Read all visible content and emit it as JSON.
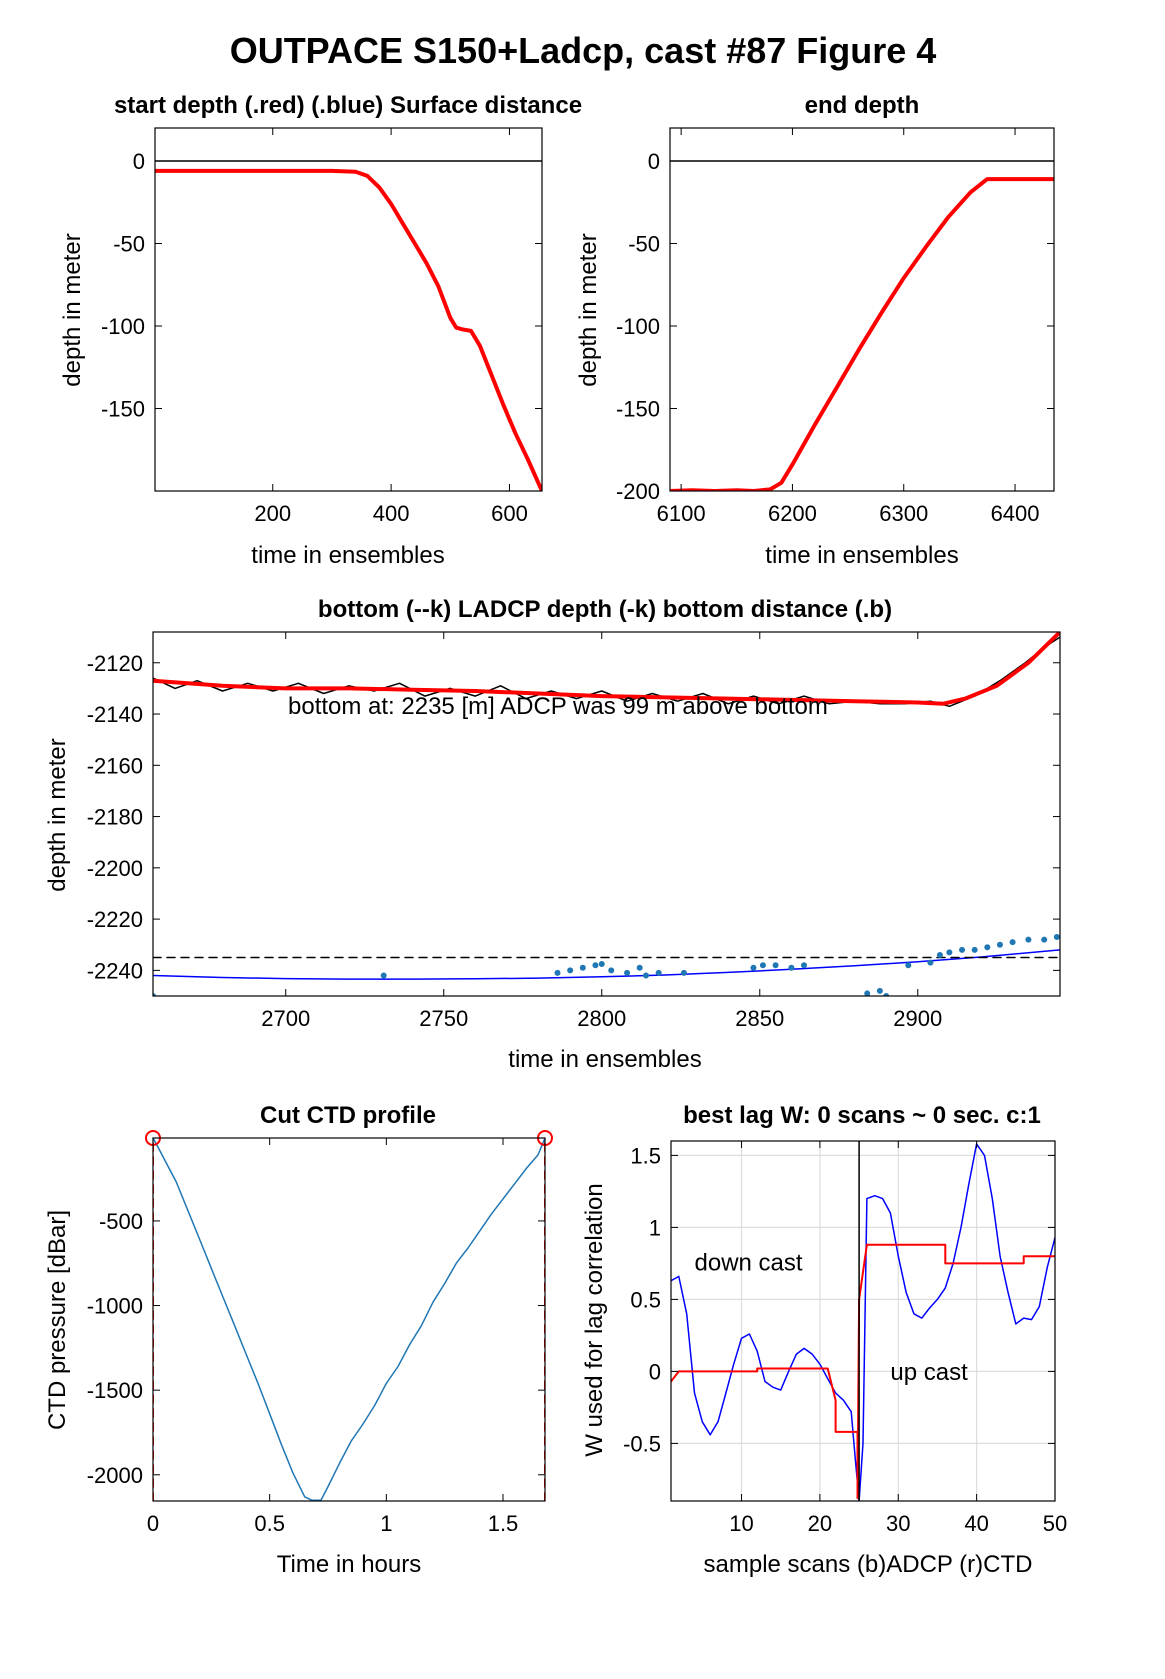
{
  "figure_title": "OUTPACE S150+Ladcp, cast #87    Figure 4",
  "chart_data": [
    {
      "id": "start",
      "type": "line",
      "title": "start depth (.red) (.blue) Surface distance",
      "xlabel": "time in ensembles",
      "ylabel": "depth in meter",
      "xlim": [
        1,
        655
      ],
      "ylim": [
        -200,
        20
      ],
      "xticks": [
        200,
        400,
        600
      ],
      "yticks": [
        0,
        -50,
        -100,
        -150
      ],
      "grid": false,
      "series": [
        {
          "color": "#ff0000",
          "style": "solid",
          "width": 4,
          "x": [
            1,
            100,
            200,
            300,
            340,
            360,
            380,
            400,
            420,
            440,
            460,
            480,
            500,
            510,
            520,
            535,
            550,
            570,
            590,
            610,
            630,
            655
          ],
          "y": [
            -6,
            -6,
            -6,
            -6,
            -6.5,
            -9,
            -16,
            -26,
            -38,
            -50,
            -62,
            -76,
            -95,
            -101,
            -102,
            -103,
            -112,
            -130,
            -148,
            -165,
            -180,
            -200
          ]
        },
        {
          "color": "#000000",
          "style": "solid",
          "width": 1.5,
          "x": [
            1,
            655
          ],
          "y": [
            0,
            0
          ]
        }
      ]
    },
    {
      "id": "end",
      "type": "line",
      "title": "end depth",
      "xlabel": "time in ensembles",
      "ylabel": "depth in meter",
      "xlim": [
        6090,
        6435
      ],
      "ylim": [
        -200,
        20
      ],
      "xticks": [
        6100,
        6200,
        6300,
        6400
      ],
      "yticks": [
        0,
        -50,
        -100,
        -150,
        -200
      ],
      "grid": false,
      "series": [
        {
          "color": "#ff0000",
          "style": "solid",
          "width": 4,
          "x": [
            6090,
            6110,
            6130,
            6150,
            6165,
            6180,
            6190,
            6200,
            6220,
            6240,
            6260,
            6280,
            6300,
            6320,
            6340,
            6360,
            6375,
            6400,
            6435
          ],
          "y": [
            -200,
            -199.5,
            -200,
            -199.5,
            -200,
            -199,
            -195,
            -184,
            -160,
            -137,
            -114,
            -92,
            -71,
            -52,
            -34,
            -19,
            -11,
            -11,
            -11
          ]
        },
        {
          "color": "#000000",
          "style": "solid",
          "width": 1.5,
          "x": [
            6090,
            6435
          ],
          "y": [
            0,
            0
          ]
        }
      ]
    },
    {
      "id": "bottom",
      "type": "line",
      "title": "bottom (--k) LADCP depth (-k) bottom distance (.b)",
      "xlabel": "time in ensembles",
      "ylabel": "depth in meter",
      "xlim": [
        2658,
        2945
      ],
      "ylim": [
        -2250,
        -2108
      ],
      "xticks": [
        2700,
        2750,
        2800,
        2850,
        2900
      ],
      "yticks": [
        -2120,
        -2140,
        -2160,
        -2180,
        -2200,
        -2220,
        -2240
      ],
      "grid": false,
      "annotation": "bottom at: 2235 [m]    ADCP was 99 m above bottom",
      "series": [
        {
          "color": "#000000",
          "style": "solid",
          "width": 1.5,
          "x": [
            2658,
            2665,
            2672,
            2680,
            2688,
            2696,
            2704,
            2712,
            2720,
            2728,
            2736,
            2744,
            2752,
            2760,
            2768,
            2776,
            2784,
            2792,
            2800,
            2808,
            2816,
            2824,
            2832,
            2840,
            2848,
            2856,
            2864,
            2872,
            2880,
            2888,
            2896,
            2904,
            2910,
            2918,
            2926,
            2934,
            2940,
            2945
          ],
          "y": [
            -2126,
            -2130,
            -2127,
            -2131,
            -2128,
            -2131,
            -2128,
            -2132,
            -2129,
            -2131,
            -2128,
            -2133,
            -2130,
            -2133,
            -2129,
            -2134,
            -2131,
            -2134,
            -2131,
            -2135,
            -2132,
            -2135,
            -2132,
            -2136,
            -2133,
            -2136,
            -2133,
            -2136,
            -2135,
            -2136,
            -2136,
            -2135,
            -2137,
            -2133,
            -2127,
            -2120,
            -2114,
            -2110
          ]
        },
        {
          "color": "#ff0000",
          "style": "solid",
          "width": 4,
          "x": [
            2658,
            2680,
            2700,
            2720,
            2740,
            2760,
            2780,
            2800,
            2820,
            2840,
            2860,
            2880,
            2900,
            2908,
            2915,
            2925,
            2935,
            2945
          ],
          "y": [
            -2127,
            -2129,
            -2130,
            -2130,
            -2130.5,
            -2131,
            -2132,
            -2133,
            -2133.5,
            -2134,
            -2134.5,
            -2135,
            -2135.5,
            -2136,
            -2134,
            -2129,
            -2120,
            -2108
          ]
        },
        {
          "color": "#0000ff",
          "style": "solid",
          "width": 1.5,
          "x": [
            2658,
            2680,
            2700,
            2720,
            2740,
            2760,
            2780,
            2800,
            2820,
            2840,
            2860,
            2880,
            2900,
            2920,
            2945
          ],
          "y": [
            -2242,
            -2242.8,
            -2243.2,
            -2243.4,
            -2243.4,
            -2243.3,
            -2243,
            -2242.5,
            -2241.8,
            -2240.8,
            -2239.6,
            -2238.2,
            -2236.6,
            -2234.8,
            -2232
          ]
        },
        {
          "color": "#000000",
          "style": "dashed",
          "width": 1.5,
          "x": [
            2658,
            2945
          ],
          "y": [
            -2235,
            -2235
          ]
        },
        {
          "color": "#1f77b4",
          "style": "dots",
          "width": 5,
          "x": [
            2658,
            2731,
            2786,
            2790,
            2794,
            2798,
            2800,
            2803,
            2808,
            2812,
            2814,
            2818,
            2826,
            2848,
            2851,
            2855,
            2860,
            2864,
            2884,
            2888,
            2890,
            2897,
            2904,
            2907,
            2910,
            2914,
            2918,
            2922,
            2926,
            2930,
            2935,
            2940,
            2944
          ],
          "y": [
            -2250,
            -2242,
            -2241,
            -2240,
            -2239,
            -2238,
            -2237.5,
            -2240,
            -2241,
            -2239,
            -2242,
            -2241,
            -2241,
            -2239,
            -2238,
            -2238,
            -2239,
            -2238,
            -2249,
            -2248,
            -2250,
            -2238,
            -2237,
            -2234,
            -2233,
            -2232,
            -2232,
            -2231,
            -2230,
            -2229,
            -2228,
            -2228,
            -2227
          ]
        }
      ]
    },
    {
      "id": "ctd",
      "type": "line",
      "title": "Cut CTD profile",
      "xlabel": "Time in hours",
      "ylabel": "CTD pressure [dBar]",
      "xlim": [
        0,
        1.68
      ],
      "ylim": [
        -2155,
        -10
      ],
      "xticks": [
        0,
        0.5,
        1,
        1.5
      ],
      "xtick_labels": [
        "0",
        "0.5",
        "1",
        "1.5"
      ],
      "yticks": [
        -500,
        -1000,
        -1500,
        -2000
      ],
      "grid": false,
      "series": [
        {
          "color": "#1f77b4",
          "style": "solid",
          "width": 1.5,
          "x": [
            0,
            0.02,
            0.05,
            0.1,
            0.15,
            0.2,
            0.25,
            0.3,
            0.35,
            0.4,
            0.45,
            0.5,
            0.55,
            0.6,
            0.65,
            0.68,
            0.7,
            0.72,
            0.75,
            0.8,
            0.85,
            0.9,
            0.95,
            1.0,
            1.05,
            1.1,
            1.15,
            1.2,
            1.25,
            1.3,
            1.35,
            1.4,
            1.45,
            1.5,
            1.55,
            1.6,
            1.65,
            1.68
          ],
          "y": [
            -10,
            -60,
            -140,
            -270,
            -440,
            -610,
            -780,
            -950,
            -1120,
            -1290,
            -1460,
            -1640,
            -1820,
            -1990,
            -2130,
            -2150,
            -2150,
            -2150,
            -2070,
            -1930,
            -1800,
            -1700,
            -1590,
            -1460,
            -1360,
            -1230,
            -1120,
            -980,
            -870,
            -750,
            -660,
            -560,
            -460,
            -370,
            -280,
            -190,
            -110,
            -10
          ]
        },
        {
          "color": "#ff0000",
          "style": "dashed",
          "width": 2,
          "x": [
            0,
            0
          ],
          "y": [
            -2155,
            -10
          ]
        },
        {
          "color": "#ff0000",
          "style": "dashed",
          "width": 2,
          "x": [
            1.68,
            1.68
          ],
          "y": [
            -2155,
            -10
          ]
        },
        {
          "color": "#ff0000",
          "style": "circles",
          "width": 2,
          "x": [
            0,
            1.68
          ],
          "y": [
            -10,
            -10
          ]
        }
      ]
    },
    {
      "id": "lag",
      "type": "line",
      "title": "best lag W: 0 scans ~ 0 sec.  c:1",
      "xlabel": "sample scans (b)ADCP (r)CTD",
      "ylabel": "W used for lag correlation",
      "xlim": [
        1,
        50
      ],
      "ylim": [
        -0.9,
        1.6
      ],
      "xticks": [
        10,
        20,
        30,
        40,
        50
      ],
      "yticks": [
        1.5,
        1,
        0.5,
        0,
        -0.5
      ],
      "ytick_labels": [
        "1.5",
        "1",
        "0.5",
        "0",
        "-0.5"
      ],
      "grid": true,
      "annotations": [
        {
          "text": "down cast",
          "x": 4,
          "y": 0.7
        },
        {
          "text": "up cast",
          "x": 29,
          "y": -0.06
        }
      ],
      "series": [
        {
          "color": "#0000ff",
          "style": "solid",
          "width": 1.5,
          "x": [
            1,
            2,
            3,
            4,
            5,
            6,
            7,
            8,
            9,
            10,
            11,
            12,
            13,
            14,
            15,
            16,
            17,
            18,
            19,
            20,
            21,
            22,
            23,
            24,
            24.5,
            25,
            25.5,
            26,
            27,
            28,
            29,
            30,
            31,
            32,
            33,
            34,
            35,
            36,
            37,
            38,
            39,
            40,
            41,
            42,
            43,
            44,
            45,
            46,
            47,
            48,
            49,
            50
          ],
          "y": [
            0.63,
            0.66,
            0.4,
            -0.15,
            -0.35,
            -0.44,
            -0.35,
            -0.15,
            0.05,
            0.23,
            0.26,
            0.14,
            -0.07,
            -0.11,
            -0.13,
            0.0,
            0.12,
            0.16,
            0.12,
            0.05,
            -0.05,
            -0.15,
            -0.2,
            -0.28,
            -0.6,
            -0.9,
            -0.5,
            1.2,
            1.22,
            1.2,
            1.1,
            0.8,
            0.55,
            0.4,
            0.37,
            0.44,
            0.5,
            0.58,
            0.75,
            1.0,
            1.3,
            1.58,
            1.5,
            1.2,
            0.8,
            0.55,
            0.33,
            0.37,
            0.36,
            0.45,
            0.72,
            0.93
          ]
        },
        {
          "color": "#ff0000",
          "style": "solid",
          "width": 2,
          "x": [
            1,
            2,
            12,
            12,
            21,
            21,
            22,
            22,
            24.8,
            24.8,
            25,
            26,
            26,
            32,
            32,
            36,
            36,
            46,
            46,
            50
          ],
          "y": [
            -0.07,
            0.0,
            0.0,
            0.02,
            0.02,
            0.02,
            -0.2,
            -0.42,
            -0.42,
            -0.88,
            0.5,
            0.88,
            0.88,
            0.88,
            0.88,
            0.88,
            0.75,
            0.75,
            0.8,
            0.8
          ]
        },
        {
          "color": "#000000",
          "style": "solid",
          "width": 1.5,
          "x": [
            25,
            25
          ],
          "y": [
            -0.9,
            1.6
          ]
        }
      ]
    }
  ]
}
